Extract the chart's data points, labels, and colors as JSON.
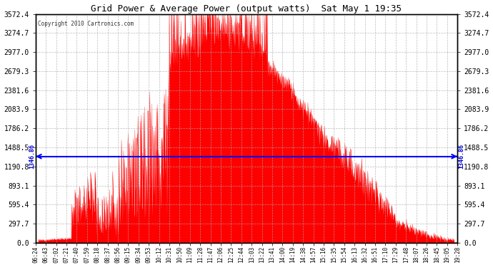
{
  "title": "Grid Power & Average Power (output watts)  Sat May 1 19:35",
  "copyright": "Copyright 2010 Cartronics.com",
  "avg_power": 1346.86,
  "y_max": 3572.4,
  "y_min": 0.0,
  "y_ticks": [
    0.0,
    297.7,
    595.4,
    893.1,
    1190.8,
    1488.5,
    1786.2,
    2083.9,
    2381.6,
    2679.3,
    2977.0,
    3274.7,
    3572.4
  ],
  "x_labels": [
    "06:24",
    "06:43",
    "07:02",
    "07:21",
    "07:40",
    "07:59",
    "08:18",
    "08:37",
    "08:56",
    "09:15",
    "09:34",
    "09:53",
    "10:12",
    "10:31",
    "10:50",
    "11:09",
    "11:28",
    "11:47",
    "12:06",
    "12:25",
    "12:44",
    "13:03",
    "13:22",
    "13:41",
    "14:00",
    "14:19",
    "14:38",
    "14:57",
    "15:16",
    "15:35",
    "15:54",
    "16:13",
    "16:32",
    "16:51",
    "17:10",
    "17:29",
    "17:48",
    "18:07",
    "18:26",
    "18:45",
    "19:05",
    "19:28"
  ],
  "fill_color": "#FF0000",
  "avg_line_color": "#0000FF",
  "bg_color": "#FFFFFF",
  "grid_color": "#AAAAAA",
  "title_color": "#000000",
  "face_color": "#FFFFFF",
  "avg_label_color": "#0000CD"
}
